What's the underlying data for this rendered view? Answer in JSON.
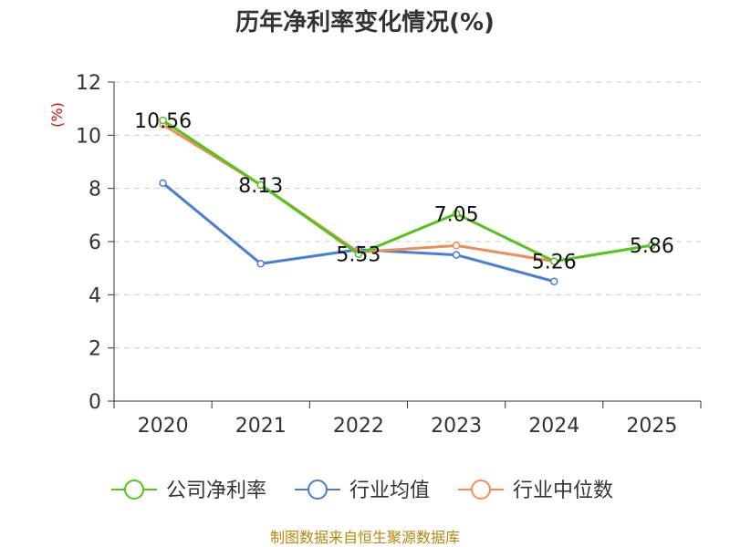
{
  "chart_data": {
    "type": "line",
    "title": "历年净利率变化情况(%)",
    "ylabel": "(%)",
    "xlabel": "",
    "categories": [
      "2020",
      "2021",
      "2022",
      "2023",
      "2024",
      "2025"
    ],
    "ylim": [
      0,
      12
    ],
    "yticks": [
      0,
      2,
      4,
      6,
      8,
      10,
      12
    ],
    "grid": true,
    "legend_position": "bottom",
    "series": [
      {
        "name": "公司净利率",
        "color": "#52c41a",
        "values": [
          10.56,
          8.13,
          5.53,
          7.05,
          5.26,
          5.86
        ],
        "labels": [
          "10.56",
          "8.13",
          "5.53",
          "7.05",
          "5.26",
          "5.86"
        ]
      },
      {
        "name": "行业均值",
        "color": "#4a7fd8",
        "values": [
          8.2,
          5.17,
          5.7,
          5.5,
          4.5,
          null
        ]
      },
      {
        "name": "行业中位数",
        "color": "#f08c5a",
        "values": [
          10.4,
          8.13,
          5.6,
          5.85,
          5.26,
          null
        ]
      }
    ],
    "source": "制图数据来自恒生聚源数据库"
  }
}
